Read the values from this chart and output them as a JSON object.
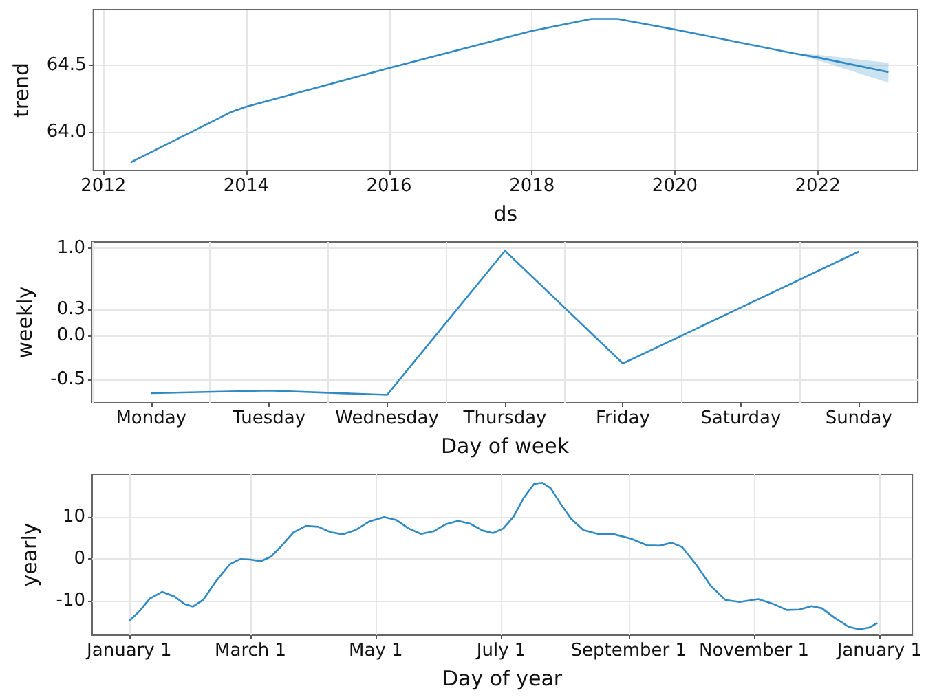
{
  "chart_data": [
    {
      "type": "line",
      "xlabel": "ds",
      "ylabel": "trend",
      "x": [
        2012.38,
        2013.79,
        2014,
        2016,
        2018,
        2018.83,
        2019.2,
        2020,
        2021.67,
        2022,
        2022.99
      ],
      "series": [
        {
          "color": "#2f8ac4",
          "values": [
            63.77,
            64.15,
            64.19,
            64.48,
            64.76,
            64.85,
            64.85,
            64.77,
            64.59,
            64.56,
            64.45
          ],
          "lower": [
            63.77,
            64.15,
            64.19,
            64.48,
            64.76,
            64.85,
            64.85,
            64.77,
            64.59,
            64.54,
            64.37
          ],
          "upper": [
            63.77,
            64.15,
            64.19,
            64.48,
            64.76,
            64.85,
            64.85,
            64.77,
            64.59,
            64.58,
            64.52
          ]
        }
      ],
      "xlim": [
        2011.86,
        2023.4
      ],
      "ylim": [
        63.71,
        64.92
      ],
      "xticks": [
        2012,
        2014,
        2016,
        2018,
        2020,
        2022
      ],
      "yticks": [
        {
          "value": 64,
          "label": "64.0"
        },
        {
          "value": 64.5,
          "label": "64.5"
        }
      ],
      "grid": true
    },
    {
      "type": "line",
      "xlabel": "Day of week",
      "ylabel": "weekly",
      "categories": [
        "Monday",
        "Tuesday",
        "Wednesday",
        "Thursday",
        "Friday",
        "Saturday",
        "Sunday"
      ],
      "series": [
        {
          "color": "#2f8ac4",
          "values": [
            -0.66,
            -0.63,
            -0.68,
            0.97,
            -0.32,
            0.32,
            0.96
          ]
        }
      ],
      "ylim": [
        -0.77,
        1.07
      ],
      "yticks": [
        {
          "value": -0.5,
          "label": "-0.5"
        },
        {
          "value": 0,
          "label": "0.0"
        },
        0.3,
        {
          "value": 1,
          "label": "1.0"
        }
      ],
      "grid": true
    },
    {
      "type": "line",
      "xlabel": "Day of year",
      "ylabel": "yearly",
      "x": [
        "2017-01-01",
        "2017-01-06",
        "2017-01-11",
        "2017-01-17",
        "2017-01-23",
        "2017-01-28",
        "2017-02-01",
        "2017-02-06",
        "2017-02-12",
        "2017-02-19",
        "2017-02-24",
        "2017-03-01",
        "2017-03-06",
        "2017-03-11",
        "2017-03-16",
        "2017-03-22",
        "2017-03-28",
        "2017-04-03",
        "2017-04-09",
        "2017-04-15",
        "2017-04-21",
        "2017-04-28",
        "2017-05-05",
        "2017-05-11",
        "2017-05-17",
        "2017-05-23",
        "2017-05-29",
        "2017-06-04",
        "2017-06-10",
        "2017-06-16",
        "2017-06-22",
        "2017-06-27",
        "2017-07-02",
        "2017-07-07",
        "2017-07-12",
        "2017-07-17",
        "2017-07-21",
        "2017-07-25",
        "2017-07-30",
        "2017-08-04",
        "2017-08-10",
        "2017-08-17",
        "2017-08-25",
        "2017-09-02",
        "2017-09-10",
        "2017-09-16",
        "2017-09-22",
        "2017-09-27",
        "2017-10-04",
        "2017-10-11",
        "2017-10-18",
        "2017-10-25",
        "2017-11-03",
        "2017-11-10",
        "2017-11-17",
        "2017-11-23",
        "2017-11-29",
        "2017-12-04",
        "2017-12-10",
        "2017-12-17",
        "2017-12-22",
        "2017-12-27",
        "2017-12-31"
      ],
      "series": [
        {
          "color": "#2f8ac4",
          "values": [
            -14.8,
            -12.5,
            -9.5,
            -7.9,
            -9.0,
            -10.8,
            -11.4,
            -9.8,
            -5.5,
            -1.3,
            -0.1,
            -0.2,
            -0.6,
            0.5,
            3.0,
            6.3,
            7.8,
            7.6,
            6.3,
            5.8,
            6.8,
            8.9,
            9.9,
            9.2,
            7.2,
            5.9,
            6.5,
            8.2,
            9.0,
            8.3,
            6.7,
            6.1,
            7.2,
            10.0,
            14.5,
            17.8,
            18.1,
            16.8,
            13.0,
            9.5,
            6.8,
            5.9,
            5.8,
            4.8,
            3.2,
            3.1,
            3.8,
            2.8,
            -1.5,
            -6.5,
            -9.8,
            -10.3,
            -9.6,
            -10.7,
            -12.2,
            -12.1,
            -11.3,
            -11.8,
            -14.0,
            -16.2,
            -16.8,
            -16.4,
            -15.3
          ]
        }
      ],
      "xlim": [
        "2016-12-14",
        "2018-01-17"
      ],
      "ylim": [
        -18.2,
        20.1
      ],
      "xticks": [
        {
          "value": "2017-01-01",
          "label": "January 1"
        },
        {
          "value": "2017-03-01",
          "label": "March 1"
        },
        {
          "value": "2017-05-01",
          "label": "May 1"
        },
        {
          "value": "2017-07-01",
          "label": "July 1"
        },
        {
          "value": "2017-09-01",
          "label": "September 1"
        },
        {
          "value": "2017-11-01",
          "label": "November 1"
        },
        {
          "value": "2018-01-01",
          "label": "January 1"
        }
      ],
      "yticks": [
        -10,
        0,
        10
      ],
      "grid": true
    }
  ]
}
